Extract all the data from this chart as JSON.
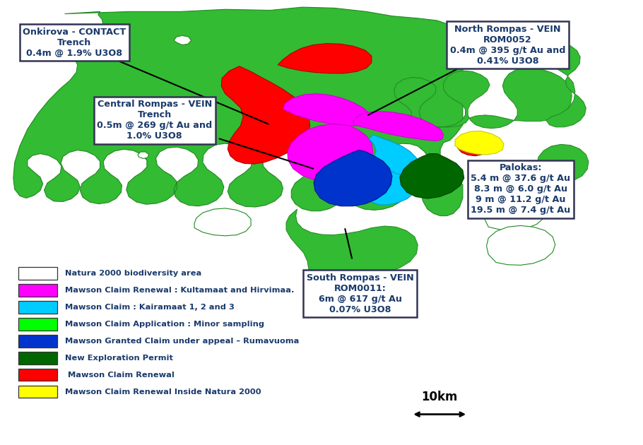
{
  "bg_color": "#ffffff",
  "text_color": "#1a3a6b",
  "figsize": [
    9.1,
    6.3
  ],
  "dpi": 100,
  "legend_items": [
    {
      "color": "#ffffff",
      "label": "Natura 2000 biodiversity area",
      "edgecolor": "#228822"
    },
    {
      "color": "#ff00ff",
      "label": "Mawson Claim Renewal : Kultamaat and Hirvimaa.",
      "edgecolor": "#cc00cc"
    },
    {
      "color": "#00ccff",
      "label": "Mawson Claim : Kairamaat 1, 2 and 3",
      "edgecolor": "#0099cc"
    },
    {
      "color": "#00ff00",
      "label": "Mawson Claim Application : Minor sampling",
      "edgecolor": "#00cc00"
    },
    {
      "color": "#0033cc",
      "label": "Mawson Granted Claim under appeal – Rumavuoma",
      "edgecolor": "#001a88"
    },
    {
      "color": "#006600",
      "label": "New Exploration Permit",
      "edgecolor": "#004400"
    },
    {
      "color": "#ff0000",
      "label": " Mawson Claim Renewal",
      "edgecolor": "#aa0000"
    },
    {
      "color": "#ffff00",
      "label": "Mawson Claim Renewal Inside Natura 2000",
      "edgecolor": "#cccc00"
    }
  ]
}
